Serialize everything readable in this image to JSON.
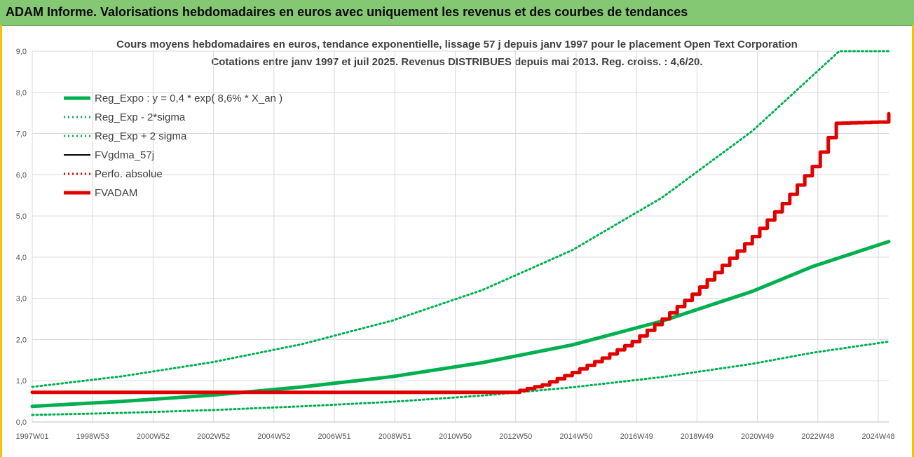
{
  "header": {
    "title": "ADAM Informe. Valorisations hebdomadaires en euros avec uniquement les revenus et des courbes de tendances"
  },
  "colors": {
    "header_bg": "#84c874",
    "reg_expo": "#00b050",
    "sigma": "#00b050",
    "fvgdma": "#000000",
    "perfo": "#e00000",
    "fvadam": "#e00000"
  },
  "chart_data": {
    "type": "line",
    "title_line1": "Cours moyens hebdomadaires en euros, tendance exponentielle, lissage 57 j depuis janv 1997 pour le placement Open Text Corporation",
    "title_line2": "Cotations entre janv 1997 et juil 2025. Revenus DISTRIBUES depuis mai 2013. Reg. croiss. : 4,6/20.",
    "x_tick_labels": [
      "1997W01",
      "1998W53",
      "2000W52",
      "2002W52",
      "2004W52",
      "2006W51",
      "2008W51",
      "2010W50",
      "2012W50",
      "2014W50",
      "2016W49",
      "2018W49",
      "2020W49",
      "2022W48",
      "2024W48"
    ],
    "y_tick_labels": [
      "0,0",
      "1,0",
      "2,0",
      "3,0",
      "4,0",
      "5,0",
      "6,0",
      "7,0",
      "8,0",
      "9,0"
    ],
    "ylim": [
      0,
      9
    ],
    "x_range_years": [
      1997.0,
      2025.55
    ],
    "grid": true,
    "legend_position": "top-left",
    "series": [
      {
        "name": "Reg_Expo : y = 0,4 * exp( 8,6% *  X_an )",
        "style": "solid-thick",
        "color": "#00b050",
        "points": [
          [
            1997,
            0.38
          ],
          [
            2000,
            0.5
          ],
          [
            2003,
            0.65
          ],
          [
            2006,
            0.85
          ],
          [
            2009,
            1.1
          ],
          [
            2012,
            1.44
          ],
          [
            2015,
            1.87
          ],
          [
            2018,
            2.45
          ],
          [
            2021,
            3.17
          ],
          [
            2023,
            3.77
          ],
          [
            2025.55,
            4.38
          ]
        ]
      },
      {
        "name": "Reg_Exp - 2*sigma",
        "style": "dotted",
        "color": "#00b050",
        "points": [
          [
            1997,
            0.17
          ],
          [
            2000,
            0.22
          ],
          [
            2003,
            0.29
          ],
          [
            2006,
            0.38
          ],
          [
            2009,
            0.49
          ],
          [
            2012,
            0.64
          ],
          [
            2015,
            0.84
          ],
          [
            2018,
            1.09
          ],
          [
            2021,
            1.41
          ],
          [
            2023,
            1.68
          ],
          [
            2025.55,
            1.95
          ]
        ]
      },
      {
        "name": "Reg_Exp + 2 sigma",
        "style": "dotted",
        "color": "#00b050",
        "points": [
          [
            1997,
            0.85
          ],
          [
            2000,
            1.11
          ],
          [
            2003,
            1.45
          ],
          [
            2006,
            1.89
          ],
          [
            2009,
            2.46
          ],
          [
            2012,
            3.2
          ],
          [
            2015,
            4.17
          ],
          [
            2018,
            5.45
          ],
          [
            2021,
            7.06
          ],
          [
            2023,
            8.4
          ],
          [
            2023.9,
            9.0
          ],
          [
            2025.55,
            9.0
          ]
        ]
      },
      {
        "name": "FVgdma_57j",
        "style": "solid",
        "color": "#000000",
        "points": [
          [
            1997,
            0.72
          ],
          [
            2013.0,
            0.72
          ],
          [
            2014,
            0.9
          ],
          [
            2015,
            1.2
          ],
          [
            2016,
            1.55
          ],
          [
            2017,
            1.95
          ],
          [
            2018,
            2.5
          ],
          [
            2019,
            3.1
          ],
          [
            2020,
            3.8
          ],
          [
            2021,
            4.5
          ],
          [
            2022,
            5.3
          ],
          [
            2023,
            6.2
          ],
          [
            2023.8,
            7.25
          ],
          [
            2025.2,
            7.28
          ],
          [
            2025.55,
            7.48
          ]
        ]
      },
      {
        "name": "Perfo. absolue",
        "style": "dotted",
        "color": "#e00000",
        "points": [
          [
            1997,
            0.72
          ],
          [
            2013.0,
            0.72
          ],
          [
            2014,
            0.9
          ],
          [
            2015,
            1.2
          ],
          [
            2016,
            1.55
          ],
          [
            2017,
            1.95
          ],
          [
            2018,
            2.5
          ],
          [
            2019,
            3.1
          ],
          [
            2020,
            3.8
          ],
          [
            2021,
            4.5
          ],
          [
            2022,
            5.3
          ],
          [
            2023,
            6.2
          ],
          [
            2023.8,
            7.25
          ],
          [
            2025.2,
            7.28
          ],
          [
            2025.55,
            7.48
          ]
        ]
      },
      {
        "name": "FVADAM",
        "style": "solid-thick",
        "color": "#e00000",
        "points": [
          [
            1997,
            0.72
          ],
          [
            2013.0,
            0.72
          ],
          [
            2014,
            0.9
          ],
          [
            2015,
            1.2
          ],
          [
            2016,
            1.55
          ],
          [
            2017,
            1.95
          ],
          [
            2018,
            2.5
          ],
          [
            2019,
            3.1
          ],
          [
            2020,
            3.8
          ],
          [
            2021,
            4.5
          ],
          [
            2022,
            5.3
          ],
          [
            2023,
            6.2
          ],
          [
            2023.8,
            7.25
          ],
          [
            2025.2,
            7.28
          ],
          [
            2025.55,
            7.48
          ]
        ]
      }
    ]
  }
}
